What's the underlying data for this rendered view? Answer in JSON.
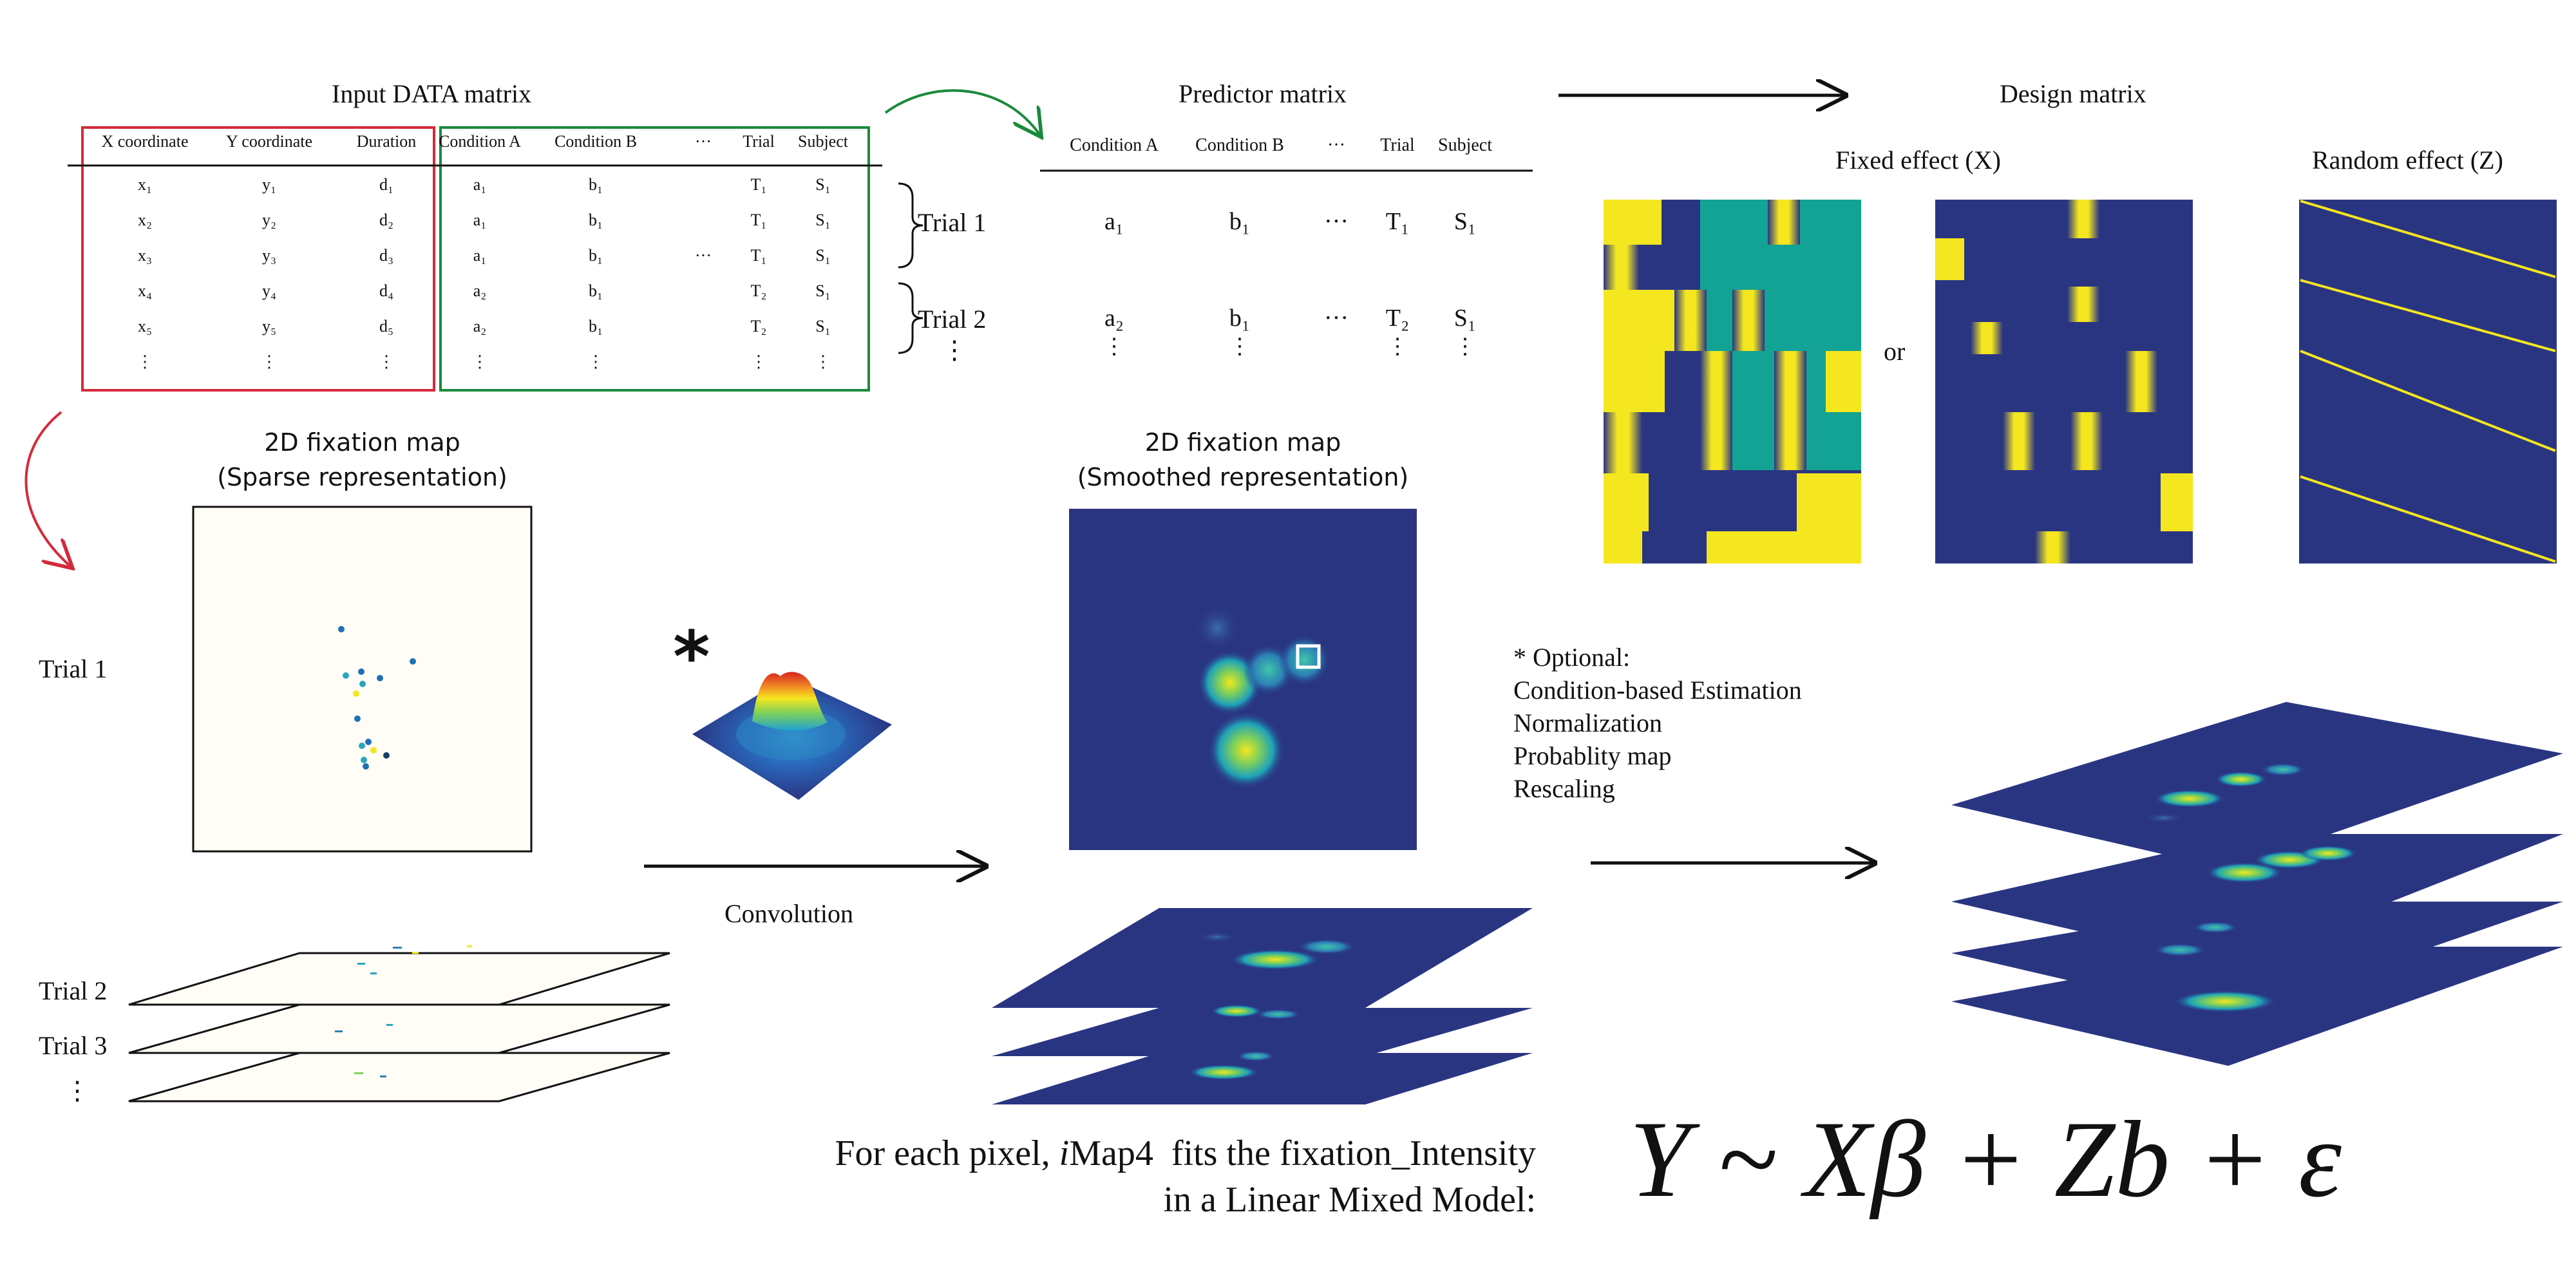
{
  "input_matrix": {
    "title": "Input DATA matrix",
    "headers": [
      "X coordinate",
      "Y coordinate",
      "Duration",
      "Condition A",
      "Condition B",
      "···",
      "Trial",
      "Subject"
    ],
    "rows": [
      [
        "x₁",
        "y₁",
        "d₁",
        "a₁",
        "b₁",
        "",
        "T₁",
        "S₁"
      ],
      [
        "x₂",
        "y₂",
        "d₂",
        "a₁",
        "b₁",
        "",
        "T₁",
        "S₁"
      ],
      [
        "x₃",
        "y₃",
        "d₃",
        "a₁",
        "b₁",
        "···",
        "T₁",
        "S₁"
      ],
      [
        "x₄",
        "y₄",
        "d₄",
        "a₂",
        "b₁",
        "",
        "T₂",
        "S₁"
      ],
      [
        "x₅",
        "y₅",
        "d₅",
        "a₂",
        "b₁",
        "",
        "T₂",
        "S₁"
      ],
      [
        "⋮",
        "⋮",
        "⋮",
        "⋮",
        "⋮",
        "",
        "⋮",
        "⋮"
      ]
    ],
    "brace_labels": [
      "Trial 1",
      "Trial 2",
      "⋮"
    ],
    "colors": {
      "data_box": "#d42a3a",
      "predictor_box": "#1a8a3a"
    }
  },
  "predictor_matrix": {
    "title": "Predictor matrix",
    "headers": [
      "Condition A",
      "Condition B",
      "···",
      "Trial",
      "Subject"
    ],
    "rows": [
      [
        "a₁",
        "b₁",
        "···",
        "T₁",
        "S₁"
      ],
      [
        "a₂",
        "b₁",
        "···",
        "T₂",
        "S₁"
      ],
      [
        "⋮",
        "⋮",
        "",
        "⋮",
        "⋮"
      ]
    ]
  },
  "design_matrix": {
    "title": "Design matrix",
    "fixed_label": "Fixed effect (X)",
    "random_label": "Random effect (Z)",
    "or_label": "or"
  },
  "sparse_map": {
    "title_line1": "2D fixation map",
    "title_line2": "(Sparse representation)",
    "trial_labels": [
      "Trial 1",
      "Trial 2",
      "Trial 3",
      "⋮"
    ]
  },
  "smoothed_map": {
    "title_line1": "2D fixation map",
    "title_line2": "(Smoothed representation)"
  },
  "convolution_label": "Convolution",
  "kernel_symbol": "*",
  "options": {
    "heading": "* Optional:",
    "items": [
      "Condition-based Estimation",
      "Normalization",
      "Probablity map",
      "Rescaling"
    ]
  },
  "caption": {
    "line1_pre": "For each pixel, ",
    "line1_brand_i": "i",
    "line1_brand": "Map4",
    "line1_post": "  fits the fixation_Intensity",
    "line2": "in a Linear Mixed Model:"
  },
  "formula": "Y ~ Xβ + Zb + ε",
  "colors": {
    "navy": "#2a3582",
    "teal": "#12a394",
    "yellow": "#f4e61f",
    "map_bg": "#fffdf6"
  }
}
